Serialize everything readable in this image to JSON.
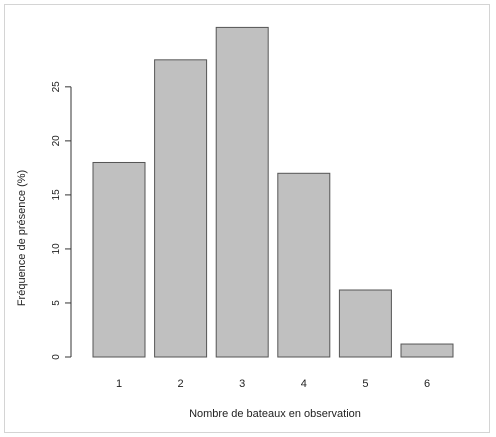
{
  "chart_data": {
    "type": "bar",
    "categories": [
      "1",
      "2",
      "3",
      "4",
      "5",
      "6"
    ],
    "values": [
      18,
      27.5,
      30.5,
      17,
      6.2,
      1.2
    ],
    "xlabel": "Nombre de bateaux en observation",
    "ylabel": "Fréquence de présence (%)",
    "ylim": [
      0,
      31
    ],
    "yticks": [
      0,
      5,
      10,
      15,
      20,
      25
    ],
    "grid": false,
    "colors": {
      "bar_fill": "#c0c0c0",
      "bar_stroke": "#555555"
    }
  }
}
